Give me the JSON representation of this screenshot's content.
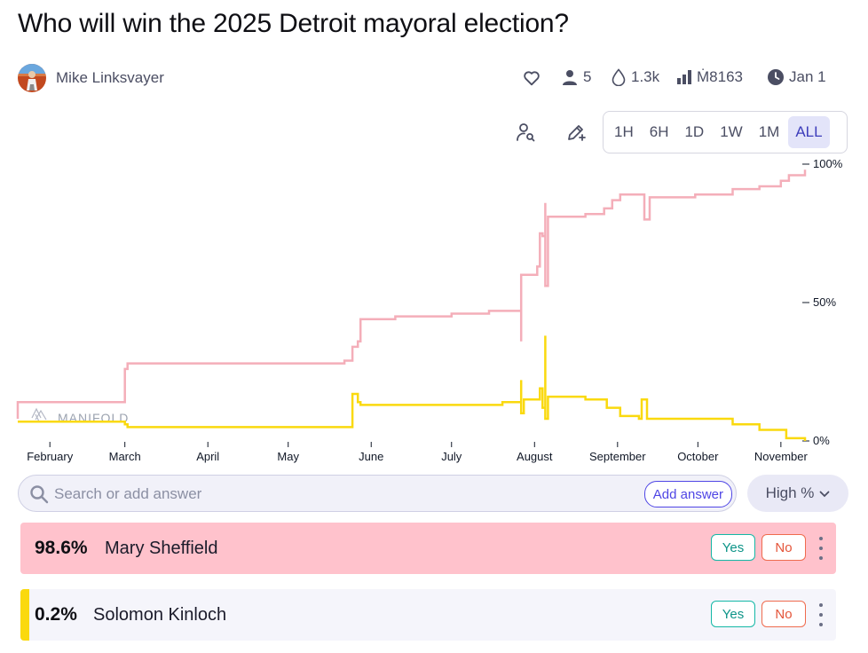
{
  "question": {
    "title": "Who will win the 2025 Detroit mayoral election?"
  },
  "author": {
    "name": "Mike Linksvayer"
  },
  "stats": {
    "traders": "5",
    "volume": "1.3k",
    "total_liquidity": "Ṁ8163",
    "close_date": "Jan 1"
  },
  "icons": {
    "like": "heart-icon",
    "traders": "user-icon",
    "volume": "droplet-icon",
    "liquidity": "bar-chart-icon",
    "close": "clock-icon",
    "view_user": "user-search-icon",
    "edit": "pencil-plus-icon",
    "search": "search-icon",
    "sort": "chevron-down-icon",
    "menu": "kebab-icon"
  },
  "time_ranges": [
    "1H",
    "6H",
    "1D",
    "1W",
    "1M",
    "ALL"
  ],
  "selected_range": "ALL",
  "chart_data": {
    "type": "line",
    "x_ticks": [
      "February",
      "March",
      "April",
      "May",
      "June",
      "July",
      "August",
      "September",
      "October",
      "November"
    ],
    "y_ticks": [
      "100%",
      "50%",
      "0%"
    ],
    "ylim": [
      0,
      100
    ],
    "watermark": "MANIFOLD",
    "series": [
      {
        "color": "#f4aeb9",
        "points": [
          [
            "Jan 20",
            8
          ],
          [
            "Jan 20",
            14
          ],
          [
            "Feb 28",
            14
          ],
          [
            "Mar 1",
            26
          ],
          [
            "Mar 2",
            28
          ],
          [
            "May 22",
            29
          ],
          [
            "May 24",
            29
          ],
          [
            "May 25",
            34
          ],
          [
            "May 27",
            36
          ],
          [
            "May 28",
            44
          ],
          [
            "Jun 10",
            45
          ],
          [
            "Jul 1",
            46
          ],
          [
            "Jul 15",
            47
          ],
          [
            "Jul 27",
            48
          ],
          [
            "Jul 27",
            36
          ],
          [
            "Jul 27",
            60
          ],
          [
            "Aug 1",
            60
          ],
          [
            "Aug 2",
            63
          ],
          [
            "Aug 3",
            75
          ],
          [
            "Aug 4",
            74
          ],
          [
            "Aug 5",
            86
          ],
          [
            "Aug 5",
            56
          ],
          [
            "Aug 6",
            81
          ],
          [
            "Aug 20",
            82
          ],
          [
            "Aug 27",
            84
          ],
          [
            "Aug 30",
            87
          ],
          [
            "Sep 2",
            89
          ],
          [
            "Sep 10",
            89
          ],
          [
            "Sep 11",
            80
          ],
          [
            "Sep 13",
            88
          ],
          [
            "Sep 30",
            89
          ],
          [
            "Oct 8",
            89
          ],
          [
            "Oct 14",
            91
          ],
          [
            "Oct 24",
            92
          ],
          [
            "Nov 1",
            94
          ],
          [
            "Nov 4",
            96
          ],
          [
            "Nov 10",
            98
          ]
        ]
      },
      {
        "color": "#fad90e",
        "points": [
          [
            "Jan 20",
            7
          ],
          [
            "Mar 1",
            6
          ],
          [
            "Mar 2",
            5
          ],
          [
            "May 24",
            5
          ],
          [
            "May 25",
            17
          ],
          [
            "May 27",
            14
          ],
          [
            "May 28",
            13
          ],
          [
            "Jun 20",
            13
          ],
          [
            "Jul 20",
            14
          ],
          [
            "Jul 27",
            14
          ],
          [
            "Jul 27",
            22
          ],
          [
            "Jul 27",
            10
          ],
          [
            "Jul 28",
            15
          ],
          [
            "Aug 3",
            15
          ],
          [
            "Aug 3",
            19
          ],
          [
            "Aug 4",
            12
          ],
          [
            "Aug 5",
            38
          ],
          [
            "Aug 5",
            8
          ],
          [
            "Aug 6",
            16
          ],
          [
            "Aug 20",
            15
          ],
          [
            "Aug 28",
            12
          ],
          [
            "Sep 2",
            9
          ],
          [
            "Sep 9",
            8
          ],
          [
            "Sep 10",
            15
          ],
          [
            "Sep 12",
            8
          ],
          [
            "Oct 4",
            8
          ],
          [
            "Oct 14",
            6
          ],
          [
            "Oct 24",
            4
          ],
          [
            "Nov 3",
            1
          ],
          [
            "Nov 10",
            0
          ]
        ]
      }
    ]
  },
  "search": {
    "placeholder": "Search or add answer",
    "value": "",
    "add_label": "Add answer"
  },
  "sort": {
    "label": "High %"
  },
  "answers": [
    {
      "percent": "98.6%",
      "name": "Mary Sheffield",
      "yes": "Yes",
      "no": "No",
      "color": "#ffc2cc"
    },
    {
      "percent": "0.2%",
      "name": "Solomon Kinloch",
      "yes": "Yes",
      "no": "No",
      "color": "#fad90e"
    }
  ]
}
